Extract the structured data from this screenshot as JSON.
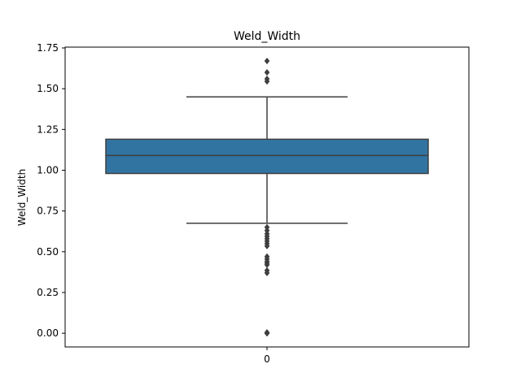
{
  "chart_data": {
    "type": "box",
    "title": "Weld_Width",
    "xlabel": "",
    "ylabel": "Weld_Width",
    "categories": [
      "0"
    ],
    "ylim": [
      -0.084,
      1.755
    ],
    "yticks": [
      0.0,
      0.25,
      0.5,
      0.75,
      1.0,
      1.25,
      1.5,
      1.75
    ],
    "ytick_labels": [
      "0.00",
      "0.25",
      "0.50",
      "0.75",
      "1.00",
      "1.25",
      "1.50",
      "1.75"
    ],
    "grid": false,
    "box": {
      "q1": 0.98,
      "median": 1.09,
      "q3": 1.19,
      "whisker_low": 0.675,
      "whisker_high": 1.45,
      "fill_color": "#3274a1",
      "line_color": "#3f3f3f"
    },
    "outliers": [
      1.67,
      1.6,
      1.56,
      1.545,
      0.65,
      0.63,
      0.61,
      0.595,
      0.58,
      0.565,
      0.55,
      0.535,
      0.47,
      0.455,
      0.44,
      0.43,
      0.42,
      0.385,
      0.37,
      0.005,
      0.0,
      0.0
    ]
  }
}
